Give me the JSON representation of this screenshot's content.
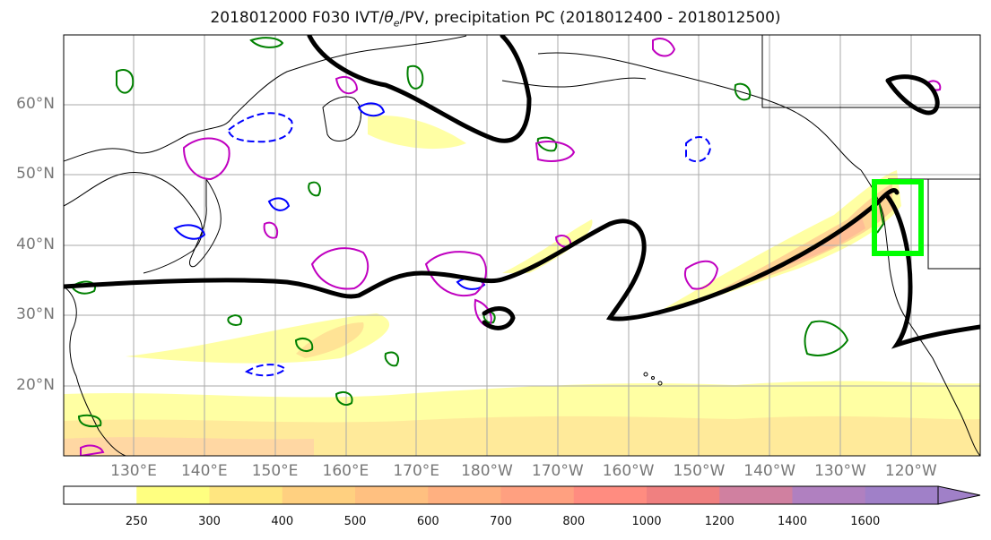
{
  "title": "2018012000 F030 IVT/θe/PV, precipitation PC (2018012400 - 2018012500)",
  "title_parts": {
    "prefix": "2018012000 F030 IVT/",
    "theta": "θ",
    "sub": "e",
    "suffix": "/PV, precipitation PC (2018012400 - 2018012500)"
  },
  "lat_labels": [
    "60°N",
    "50°N",
    "40°N",
    "30°N",
    "20°N"
  ],
  "lon_labels": [
    "130°E",
    "140°E",
    "150°E",
    "160°E",
    "170°E",
    "180°W",
    "170°W",
    "160°W",
    "150°W",
    "140°W",
    "130°W",
    "120°W"
  ],
  "colorbar": {
    "ticks": [
      "250",
      "300",
      "400",
      "500",
      "600",
      "700",
      "800",
      "1000",
      "1200",
      "1400",
      "1600"
    ],
    "colors": [
      "#ffffff",
      "#ffff80",
      "#ffe680",
      "#ffd080",
      "#ffc080",
      "#ffb080",
      "#ffa080",
      "#ff8c80",
      "#f08080",
      "#d080a0",
      "#b080c0",
      "#a080c8"
    ]
  },
  "colors": {
    "ivt_contour": "#000000",
    "pv_positive": "#008000",
    "pv_negative": "#0000ff",
    "theta_contour": "#c000c0",
    "target_box": "#00ff00",
    "coast": "#000000",
    "grid": "#aaaaaa"
  }
}
